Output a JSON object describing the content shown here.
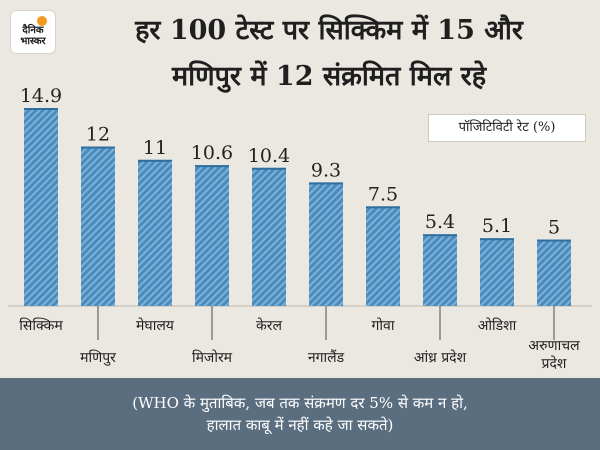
{
  "logo": {
    "line1": "दैनिक",
    "line2": "भास्कर"
  },
  "title_line1": "हर 100 टेस्ट पर सिक्किम में 15 और",
  "title_line2": "मणिपुर में 12 संक्रमित मिल रहे",
  "legend_label": "पॉजिटिविटी रेट (%)",
  "footer": {
    "line1": "(WHO के मुताबिक, जब तक संक्रमण दर 5% से कम न हो,",
    "line2": "हालात काबू में नहीं कहे जा सकते)"
  },
  "colors": {
    "bar": "#4a8bbd",
    "stripe": "#7eb1d8",
    "bar_top": "#2f6f9f",
    "background": "#ebe8e1",
    "footer": "#5a6e80"
  },
  "chart_data": {
    "type": "bar",
    "categories": [
      "सिक्किम",
      "मणिपुर",
      "मेघालय",
      "मिजोरम",
      "केरल",
      "नगालैंड",
      "गोवा",
      "आंध्र प्रदेश",
      "ओडिशा",
      "अरुणाचल प्रदेश"
    ],
    "category_lines": [
      [
        "सिक्किम"
      ],
      [
        "मणिपुर"
      ],
      [
        "मेघालय"
      ],
      [
        "मिजोरम"
      ],
      [
        "केरल"
      ],
      [
        "नगालैंड"
      ],
      [
        "गोवा"
      ],
      [
        "आंध्र प्रदेश"
      ],
      [
        "ओडिशा"
      ],
      [
        "अरुणाचल",
        "प्रदेश"
      ]
    ],
    "values": [
      14.9,
      12,
      11,
      10.6,
      10.4,
      9.3,
      7.5,
      5.4,
      5.1,
      5
    ],
    "value_labels": [
      "14.9",
      "12",
      "11",
      "10.6",
      "10.4",
      "9.3",
      "7.5",
      "5.4",
      "5.1",
      "5"
    ],
    "ylabel": "पॉजिटिविटी रेट (%)",
    "ylim": [
      0,
      14.9
    ],
    "grid": false,
    "legend": "top-right"
  }
}
